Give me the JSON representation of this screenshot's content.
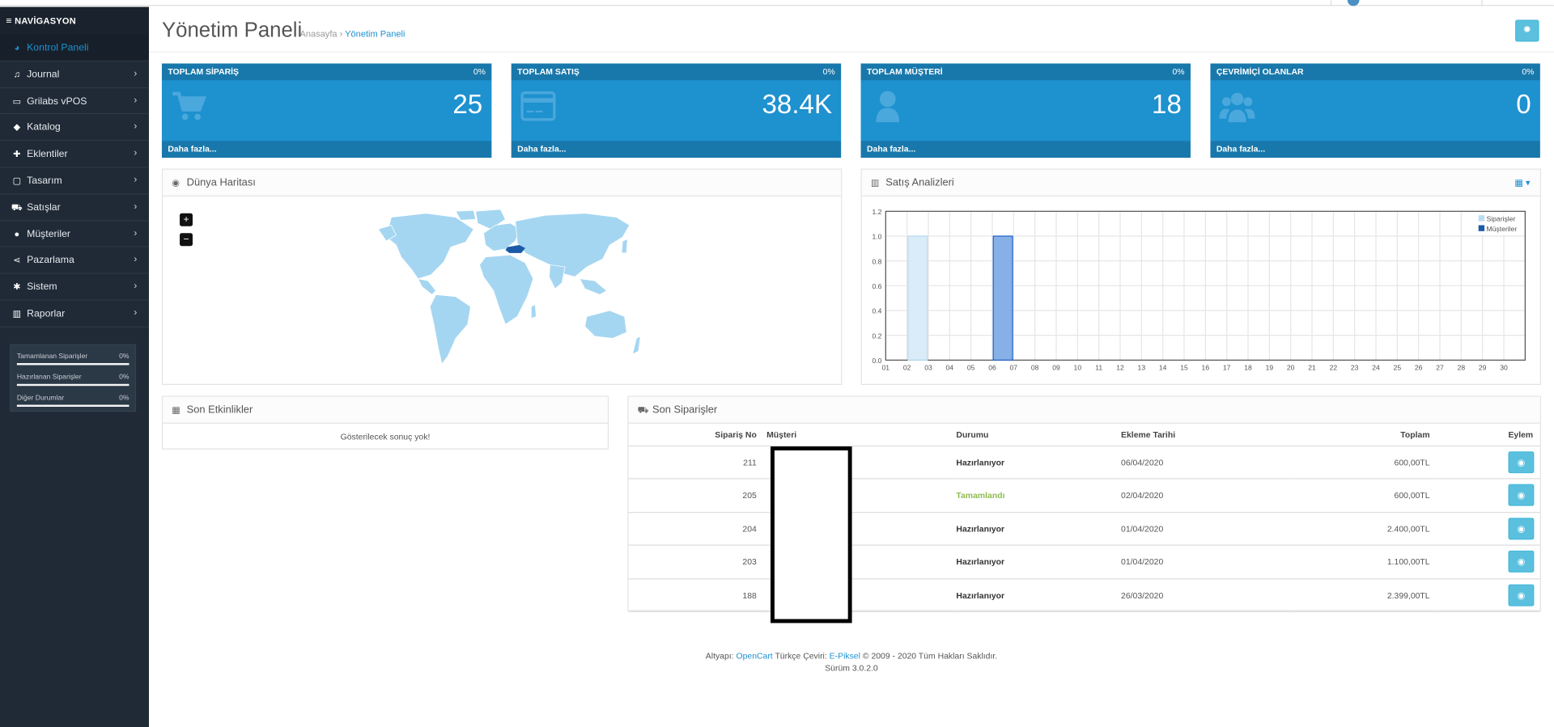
{
  "nav": {
    "header": "NAVİGASYON",
    "items": [
      {
        "label": "Kontrol Paneli",
        "icon": "dashboard-icon"
      },
      {
        "label": "Journal",
        "icon": "music-note-icon"
      },
      {
        "label": "Grilabs vPOS",
        "icon": "credit-card-icon"
      },
      {
        "label": "Katalog",
        "icon": "tags-icon"
      },
      {
        "label": "Eklentiler",
        "icon": "puzzle-icon"
      },
      {
        "label": "Tasarım",
        "icon": "monitor-icon"
      },
      {
        "label": "Satışlar",
        "icon": "cart-icon"
      },
      {
        "label": "Müşteriler",
        "icon": "user-icon"
      },
      {
        "label": "Pazarlama",
        "icon": "share-icon"
      },
      {
        "label": "Sistem",
        "icon": "gear-icon"
      },
      {
        "label": "Raporlar",
        "icon": "bar-chart-icon"
      }
    ],
    "stats": [
      {
        "label": "Tamamlanan Siparişler",
        "pct": "0%"
      },
      {
        "label": "Hazırlanan Siparişler",
        "pct": "0%"
      },
      {
        "label": "Diğer Durumlar",
        "pct": "0%"
      }
    ]
  },
  "header": {
    "title": "Yönetim Paneli",
    "breadcrumb_home": "Anasayfa",
    "breadcrumb_sep": "›",
    "breadcrumb_current": "Yönetim Paneli"
  },
  "tiles": [
    {
      "title": "TOPLAM SİPARİŞ",
      "pct": "0%",
      "value": "25",
      "more": "Daha fazla...",
      "icon": "cart-icon"
    },
    {
      "title": "TOPLAM SATIŞ",
      "pct": "0%",
      "value": "38.4K",
      "more": "Daha fazla...",
      "icon": "credit-card-icon"
    },
    {
      "title": "TOPLAM MÜŞTERİ",
      "pct": "0%",
      "value": "18",
      "more": "Daha fazla...",
      "icon": "user-icon"
    },
    {
      "title": "ÇEVRİMİÇİ OLANLAR",
      "pct": "0%",
      "value": "0",
      "more": "Daha fazla...",
      "icon": "users-icon"
    }
  ],
  "map": {
    "title": "Dünya Haritası",
    "zoom_in": "+",
    "zoom_out": "−"
  },
  "sales": {
    "title": "Satış Analizleri"
  },
  "chart_data": {
    "type": "bar",
    "categories": [
      "01",
      "02",
      "03",
      "04",
      "05",
      "06",
      "07",
      "08",
      "09",
      "10",
      "11",
      "12",
      "13",
      "14",
      "15",
      "16",
      "17",
      "18",
      "19",
      "20",
      "21",
      "22",
      "23",
      "24",
      "25",
      "26",
      "27",
      "28",
      "29",
      "30"
    ],
    "series": [
      {
        "name": "Siparişler",
        "color": "#d6eaf7",
        "values": [
          0,
          1,
          0,
          0,
          0,
          0,
          0,
          0,
          0,
          0,
          0,
          0,
          0,
          0,
          0,
          0,
          0,
          0,
          0,
          0,
          0,
          0,
          0,
          0,
          0,
          0,
          0,
          0,
          0,
          0
        ]
      },
      {
        "name": "Müşteriler",
        "color": "#7aa7e3",
        "values": [
          0,
          0,
          0,
          0,
          0,
          1,
          0,
          0,
          0,
          0,
          0,
          0,
          0,
          0,
          0,
          0,
          0,
          0,
          0,
          0,
          0,
          0,
          0,
          0,
          0,
          0,
          0,
          0,
          0,
          0
        ]
      }
    ],
    "yticks": [
      "0.0",
      "0.2",
      "0.4",
      "0.6",
      "0.8",
      "1.0",
      "1.2"
    ],
    "ylim": [
      0,
      1.2
    ],
    "legend": "top-right",
    "grid": true
  },
  "activity": {
    "title": "Son Etkinlikler",
    "empty": "Gösterilecek sonuç yok!"
  },
  "orders": {
    "title": "Son Siparişler",
    "columns": [
      "Sipariş No",
      "Müşteri",
      "Durumu",
      "Ekleme Tarihi",
      "Toplam",
      "Eylem"
    ],
    "rows": [
      {
        "id": "211",
        "status": "Hazırlanıyor",
        "done": false,
        "date": "06/04/2020",
        "total": "600,00TL"
      },
      {
        "id": "205",
        "status": "Tamamlandı",
        "done": true,
        "date": "02/04/2020",
        "total": "600,00TL"
      },
      {
        "id": "204",
        "status": "Hazırlanıyor",
        "done": false,
        "date": "01/04/2020",
        "total": "2.400,00TL"
      },
      {
        "id": "203",
        "status": "Hazırlanıyor",
        "done": false,
        "date": "01/04/2020",
        "total": "1.100,00TL"
      },
      {
        "id": "188",
        "status": "Hazırlanıyor",
        "done": false,
        "date": "26/03/2020",
        "total": "2.399,00TL"
      }
    ]
  },
  "footer": {
    "prefix": "Altyapı:",
    "opencart": "OpenCart",
    "middle": "Türkçe Çeviri:",
    "epiksel": "E-Piksel",
    "suffix": "© 2009 - 2020 Tüm Hakları Saklıdır.",
    "version": "Sürüm 3.0.2.0"
  },
  "colors": {
    "accent": "#1e91cf",
    "sidebar": "#1f2a36",
    "info_button": "#5bc0de",
    "done": "#8fbc4f"
  }
}
